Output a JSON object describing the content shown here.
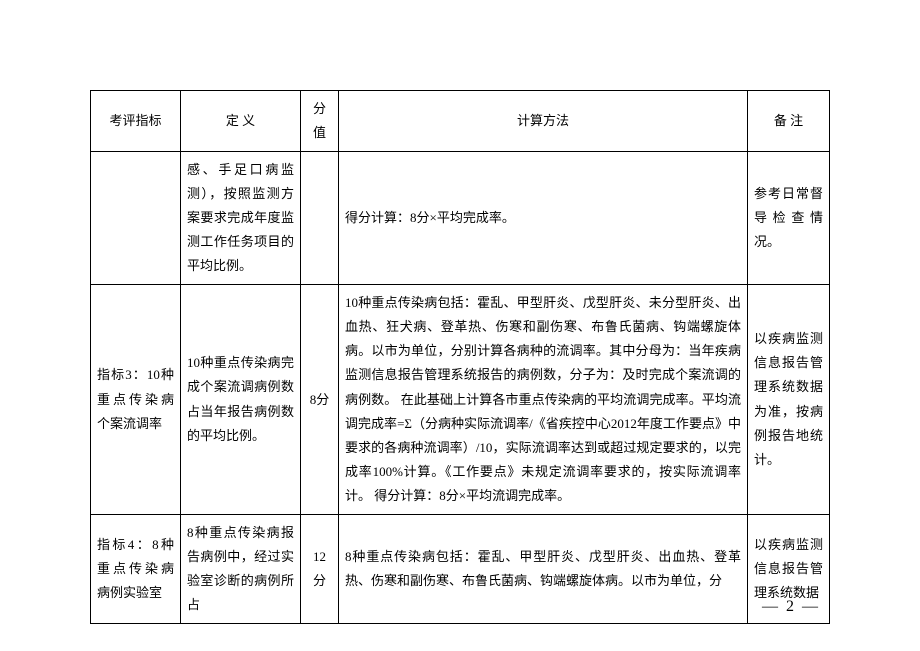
{
  "header": {
    "col1": "考评指标",
    "col2": "定 义",
    "col3": "分值",
    "col4": "计算方法",
    "col5": "备 注"
  },
  "rows": [
    {
      "indicator": "",
      "definition": "感、手足口病监测），按照监测方案要求完成年度监测工作任务项目的平均比例。",
      "score": "",
      "method": "得分计算：8分×平均完成率。",
      "note": "参考日常督导检查情况。"
    },
    {
      "indicator": "指标3：10种重点传染病个案流调率",
      "definition": "10种重点传染病完成个案流调病例数占当年报告病例数的平均比例。",
      "score": "8分",
      "method": "10种重点传染病包括：霍乱、甲型肝炎、戊型肝炎、未分型肝炎、出血热、狂犬病、登革热、伤寒和副伤寒、布鲁氏菌病、钩端螺旋体病。以市为单位，分别计算各病种的流调率。其中分母为：当年疾病监测信息报告管理系统报告的病例数，分子为：及时完成个案流调的病例数。\n在此基础上计算各市重点传染病的平均流调完成率。平均流调完成率=Σ（分病种实际流调率/《省疾控中心2012年度工作要点》中要求的各病种流调率）/10，实际流调率达到或超过规定要求的，以完成率100%计算。《工作要点》未规定流调率要求的，按实际流调率计。\n得分计算：8分×平均流调完成率。",
      "note": "以疾病监测信息报告管理系统数据为准，按病例报告地统计。"
    },
    {
      "indicator": "指标4：8种重点传染病病例实验室",
      "definition": "8种重点传染病报告病例中，经过实验室诊断的病例所占",
      "score": "12分",
      "method": "8种重点传染病包括：霍乱、甲型肝炎、戊型肝炎、出血热、登革热、伤寒和副伤寒、布鲁氏菌病、钩端螺旋体病。以市为单位，分",
      "note": "以疾病监测信息报告管理系统数据"
    }
  ],
  "pagenum": "— 2 —"
}
